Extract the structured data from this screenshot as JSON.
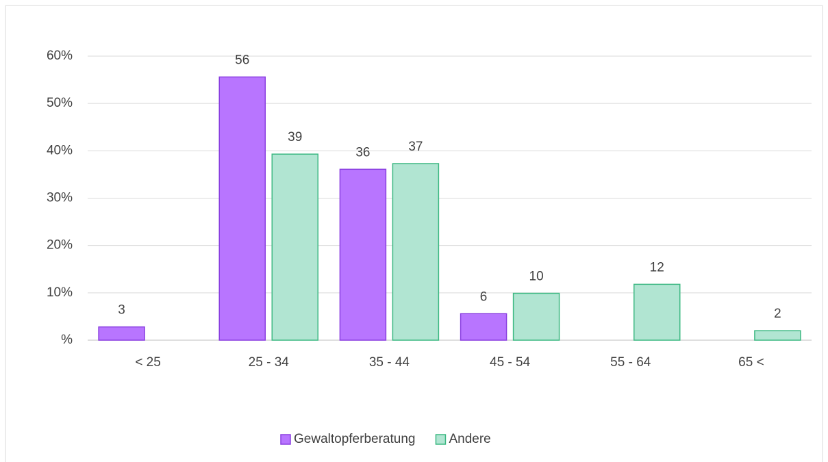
{
  "chart_data": {
    "type": "bar",
    "categories": [
      "< 25",
      "25 - 34",
      "35 - 44",
      "45 - 54",
      "55 - 64",
      "65 <"
    ],
    "series": [
      {
        "name": "Gewaltopferberatung",
        "color": "#b875ff",
        "edge": "#8a3fe0",
        "values": [
          2.8,
          55.6,
          36.1,
          5.6,
          null,
          null
        ],
        "value_labels": [
          "3",
          "56",
          "36",
          "6",
          null,
          null
        ]
      },
      {
        "name": "Andere",
        "color": "#b1e5d2",
        "edge": "#3cb882",
        "values": [
          null,
          39.3,
          37.3,
          9.9,
          11.8,
          2.0
        ],
        "value_labels": [
          null,
          "39",
          "37",
          "10",
          "12",
          "2"
        ]
      }
    ],
    "ylim": [
      0,
      60
    ],
    "yticks": [
      {
        "value": 0,
        "label": "%"
      },
      {
        "value": 10,
        "label": "10%"
      },
      {
        "value": 20,
        "label": "20%"
      },
      {
        "value": 30,
        "label": "30%"
      },
      {
        "value": 40,
        "label": "40%"
      },
      {
        "value": 50,
        "label": "50%"
      },
      {
        "value": 60,
        "label": "60%"
      }
    ],
    "grid": true,
    "legend": "bottom"
  }
}
